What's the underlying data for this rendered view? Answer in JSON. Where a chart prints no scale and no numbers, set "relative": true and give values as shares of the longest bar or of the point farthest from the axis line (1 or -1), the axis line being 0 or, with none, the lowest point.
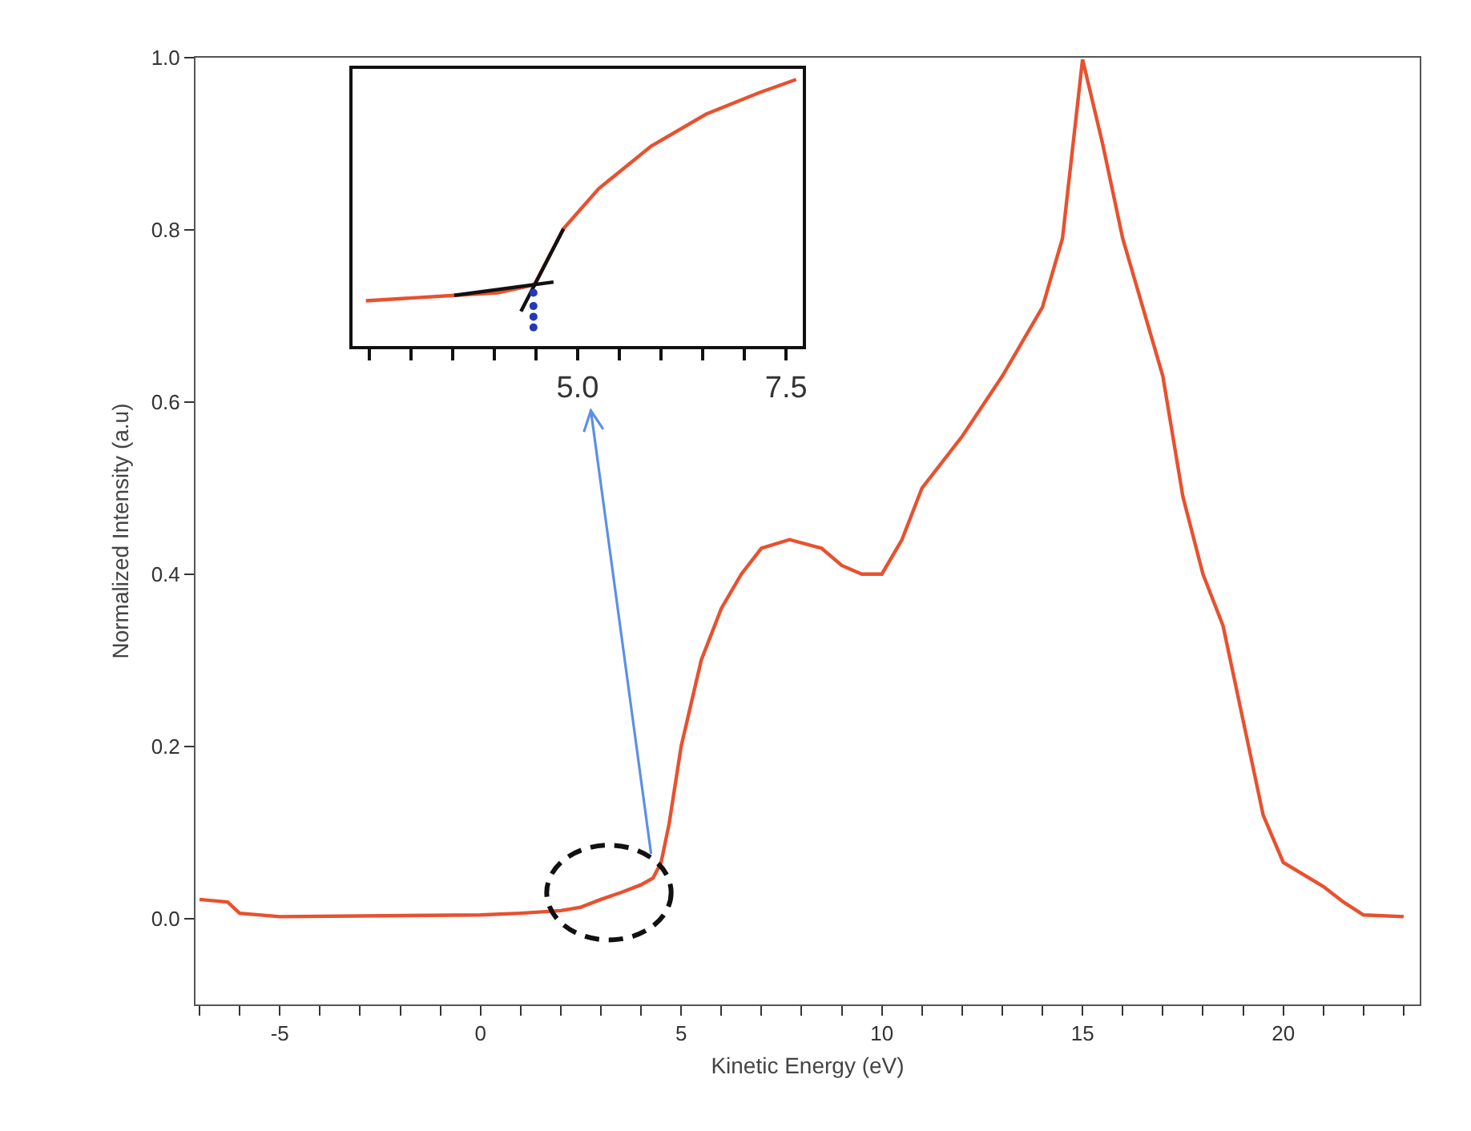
{
  "chart_data": [
    {
      "type": "line",
      "xlabel": "Kinetic Energy (eV)",
      "ylabel": "Normalized Intensity (a.u)",
      "xlim": [
        -7.1,
        23.4
      ],
      "ylim": [
        -0.1,
        1.0
      ],
      "xticks": [
        {
          "value": -7,
          "label": null
        },
        {
          "value": -6,
          "label": null
        },
        -5,
        {
          "value": -4,
          "label": null
        },
        {
          "value": -3,
          "label": null
        },
        {
          "value": -2,
          "label": null
        },
        {
          "value": -1,
          "label": null
        },
        0,
        {
          "value": 1,
          "label": null
        },
        {
          "value": 2,
          "label": null
        },
        {
          "value": 3,
          "label": null
        },
        {
          "value": 4,
          "label": null
        },
        5,
        {
          "value": 6,
          "label": null
        },
        {
          "value": 7,
          "label": null
        },
        {
          "value": 8,
          "label": null
        },
        {
          "value": 9,
          "label": null
        },
        10,
        {
          "value": 11,
          "label": null
        },
        {
          "value": 12,
          "label": null
        },
        {
          "value": 13,
          "label": null
        },
        {
          "value": 14,
          "label": null
        },
        15,
        {
          "value": 16,
          "label": null
        },
        {
          "value": 17,
          "label": null
        },
        {
          "value": 18,
          "label": null
        },
        {
          "value": 19,
          "label": null
        },
        20,
        {
          "value": 21,
          "label": null
        },
        {
          "value": 22,
          "label": null
        },
        {
          "value": 23,
          "label": null
        }
      ],
      "yticks": [
        {
          "value": 0,
          "label": "0.0"
        },
        {
          "value": 0.2,
          "label": "0.2"
        },
        {
          "value": 0.4,
          "label": "0.4"
        },
        {
          "value": 0.6,
          "label": "0.6"
        },
        {
          "value": 0.8,
          "label": "0.8"
        },
        {
          "value": 1.0,
          "label": "1.0"
        }
      ],
      "series": [
        {
          "color": "#e8512f",
          "x": [
            -7,
            -6.3,
            -6,
            -5,
            0,
            1,
            2,
            2.5,
            3,
            3.5,
            4,
            4.3,
            4.5,
            4.7,
            5,
            5.5,
            6,
            6.5,
            7,
            7.7,
            8.5,
            9,
            9.5,
            10,
            10.5,
            11,
            12,
            13,
            14,
            14.5,
            15,
            15.5,
            16,
            16.5,
            17,
            17.5,
            18,
            18.5,
            19,
            19.5,
            20,
            21,
            21.5,
            22,
            23
          ],
          "values": [
            0.022,
            0.019,
            0.006,
            0.002,
            0.004,
            0.006,
            0.009,
            0.013,
            0.022,
            0.03,
            0.039,
            0.047,
            0.065,
            0.11,
            0.2,
            0.3,
            0.36,
            0.4,
            0.43,
            0.44,
            0.43,
            0.41,
            0.4,
            0.4,
            0.44,
            0.5,
            0.56,
            0.63,
            0.71,
            0.79,
            0.998,
            0.9,
            0.79,
            0.71,
            0.63,
            0.49,
            0.4,
            0.34,
            0.23,
            0.12,
            0.065,
            0.037,
            0.019,
            0.004,
            0.002
          ]
        }
      ]
    },
    {
      "type": "line",
      "relative": true,
      "xlim": [
        2.3,
        7.7
      ],
      "xticks": [
        {
          "value": 2.5,
          "label": null
        },
        {
          "value": 3.0,
          "label": null
        },
        {
          "value": 3.5,
          "label": null
        },
        {
          "value": 4.0,
          "label": null
        },
        {
          "value": 4.5,
          "label": null
        },
        {
          "value": 5.0,
          "label": "5.0"
        },
        {
          "value": 5.5,
          "label": null
        },
        {
          "value": 6.0,
          "label": null
        },
        {
          "value": 6.5,
          "label": null
        },
        {
          "value": 7.0,
          "label": null
        },
        {
          "value": 7.5,
          "label": "7.5"
        }
      ],
      "series": [
        {
          "color": "#e8512f",
          "x": [
            2.46,
            3.52,
            4.04,
            4.48,
            4.83,
            5.25,
            5.88,
            6.54,
            7.17,
            7.62
          ],
          "values": [
            0.17,
            0.19,
            0.2,
            0.23,
            0.44,
            0.59,
            0.75,
            0.87,
            0.95,
            1.0
          ]
        },
        {
          "type": "line",
          "color": "#111111",
          "x": [
            3.52,
            4.71
          ],
          "values": [
            0.19,
            0.24
          ]
        },
        {
          "type": "line",
          "color": "#111111",
          "x": [
            4.32,
            4.83
          ],
          "values": [
            0.13,
            0.44
          ]
        },
        {
          "type": "scatter",
          "color": "#2438b8",
          "x": [
            4.47,
            4.47,
            4.47,
            4.47
          ],
          "values": [
            0.07,
            0.11,
            0.15,
            0.2
          ]
        }
      ]
    }
  ]
}
